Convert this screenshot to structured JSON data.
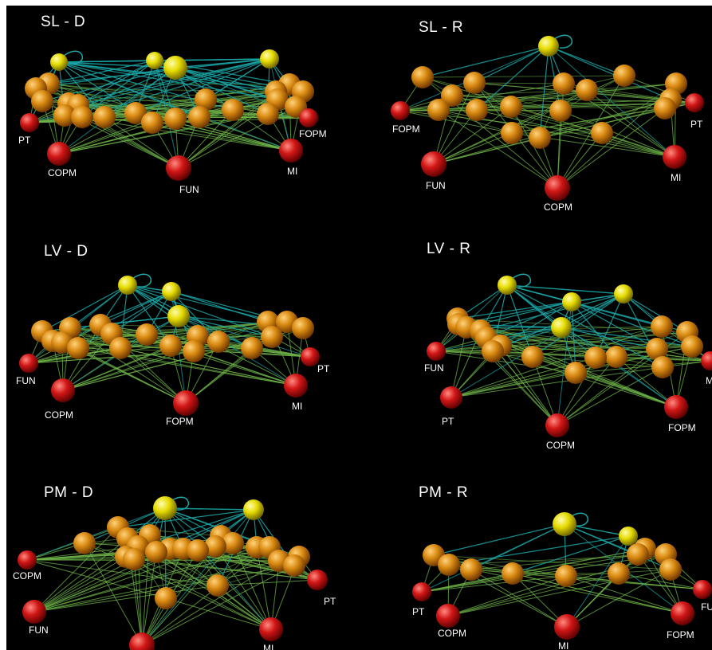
{
  "colors": {
    "background": "#000000",
    "hub_node": "#e6dc00",
    "module_node": "#d98a12",
    "stimulus_node": "#d11616",
    "hub_edge": "#1aa6a6",
    "module_edge": "#6fb54a"
  },
  "panels": [
    {
      "id": "sl-d",
      "title": "SL - D",
      "labels": [
        "PT",
        "COPM",
        "FUN",
        "MI",
        "FOPM"
      ]
    },
    {
      "id": "sl-r",
      "title": "SL - R",
      "labels": [
        "FOPM",
        "FUN",
        "COPM",
        "MI",
        "PT"
      ]
    },
    {
      "id": "lv-d",
      "title": "LV - D",
      "labels": [
        "FUN",
        "COPM",
        "FOPM",
        "MI",
        "PT"
      ]
    },
    {
      "id": "lv-r",
      "title": "LV - R",
      "labels": [
        "FUN",
        "PT",
        "COPM",
        "FOPM",
        "MI"
      ]
    },
    {
      "id": "pm-d",
      "title": "PM - D",
      "labels": [
        "COPM",
        "FUN",
        "MI",
        "PT"
      ]
    },
    {
      "id": "pm-r",
      "title": "PM - R",
      "labels": [
        "PT",
        "COPM",
        "MI",
        "FOPM",
        "FUN"
      ]
    }
  ]
}
